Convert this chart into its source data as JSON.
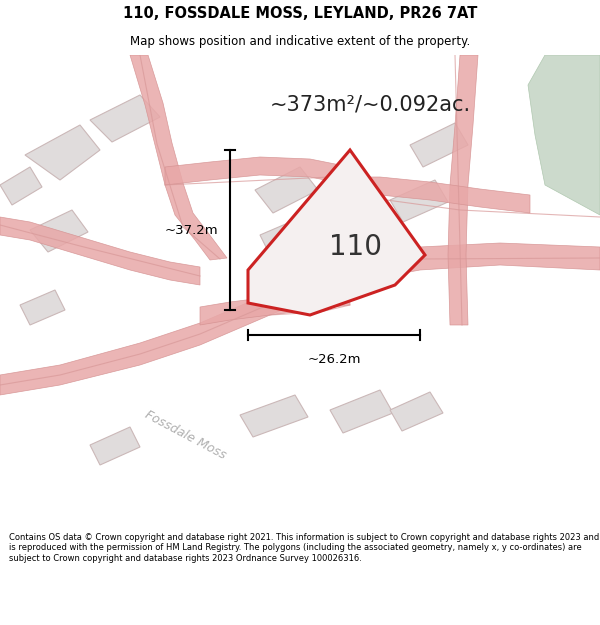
{
  "title_line1": "110, FOSSDALE MOSS, LEYLAND, PR26 7AT",
  "title_line2": "Map shows position and indicative extent of the property.",
  "area_text": "~373m²/~0.092ac.",
  "plot_number": "110",
  "dim_vertical": "~37.2m",
  "dim_horizontal": "~26.2m",
  "street_label": "Fossdale Moss",
  "footer_text": "Contains OS data © Crown copyright and database right 2021. This information is subject to Crown copyright and database rights 2023 and is reproduced with the permission of HM Land Registry. The polygons (including the associated geometry, namely x, y co-ordinates) are subject to Crown copyright and database rights 2023 Ordnance Survey 100026316.",
  "bg_color": "#f2f0ef",
  "map_bg": "#f2f0ef",
  "highlight_plot_color": "#cc2222",
  "road_color": "#e8a8a8",
  "building_fill": "#e0dcdc",
  "building_edge": "#cbb8b8",
  "green_fill": "#ccdacc",
  "green_edge": "#b0c8b0",
  "footer_bg": "#ffffff"
}
